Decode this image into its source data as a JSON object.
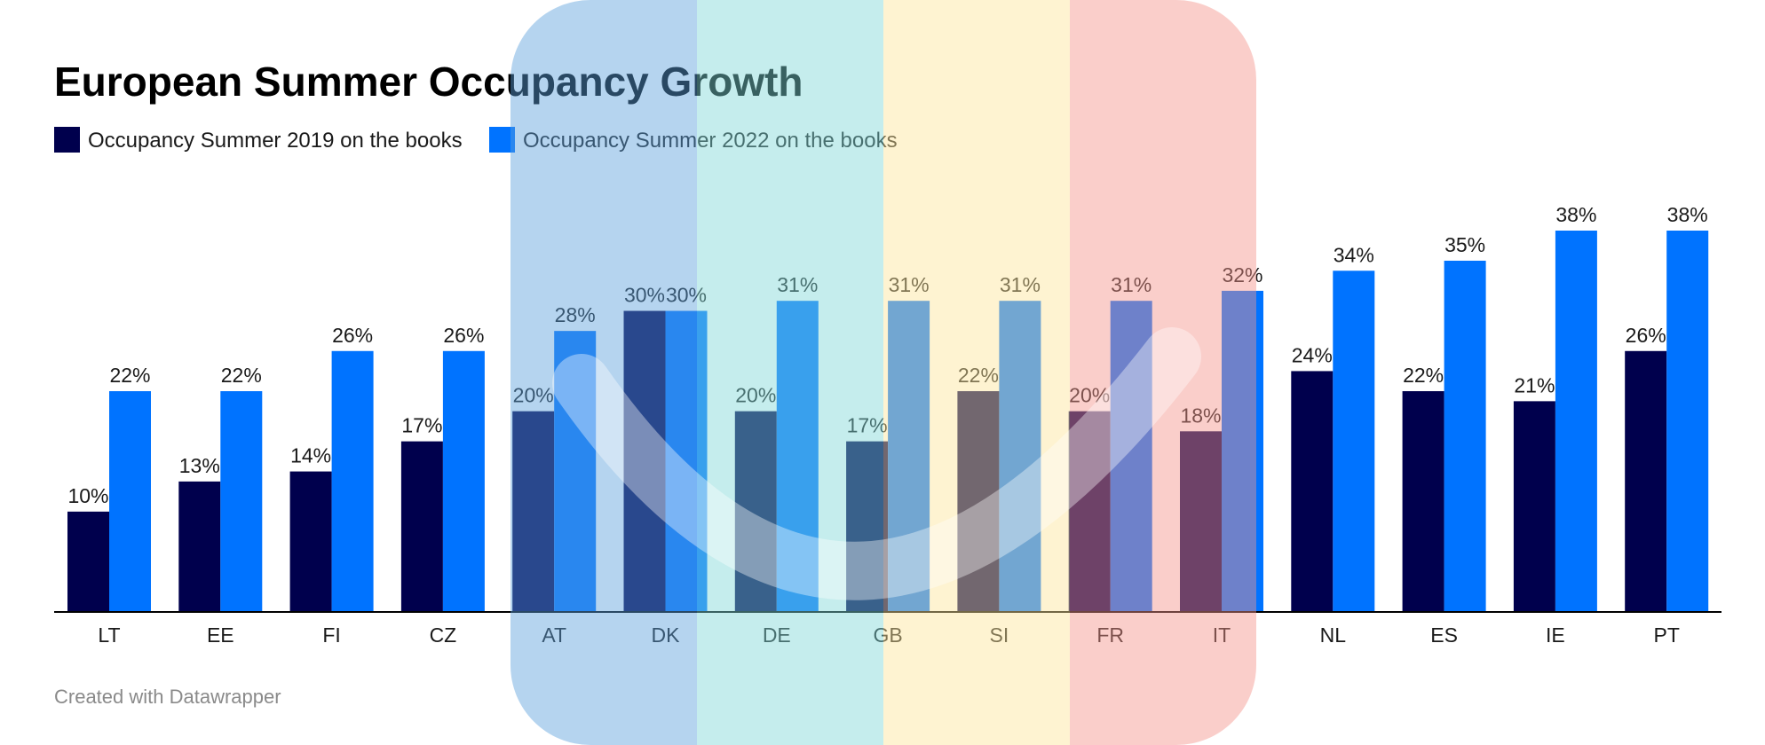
{
  "chart_data": {
    "type": "bar",
    "title": "European Summer Occupancy Growth",
    "categories": [
      "LT",
      "EE",
      "FI",
      "CZ",
      "AT",
      "DK",
      "DE",
      "GB",
      "SI",
      "FR",
      "IT",
      "NL",
      "ES",
      "IE",
      "PT"
    ],
    "series": [
      {
        "name": "Occupancy Summer 2019 on the books",
        "color": "#00004d",
        "values": [
          10,
          13,
          14,
          17,
          20,
          30,
          20,
          17,
          22,
          20,
          18,
          24,
          22,
          21,
          26
        ],
        "labels": [
          "10%",
          "13%",
          "14%",
          "17%",
          "20%",
          "30%",
          "20%",
          "17%",
          "22%",
          "20%",
          "18%",
          "24%",
          "22%",
          "21%",
          "26%"
        ]
      },
      {
        "name": "Occupancy Summer 2022 on the books",
        "color": "#0073ff",
        "values": [
          22,
          22,
          26,
          26,
          28,
          30,
          31,
          31,
          31,
          31,
          32,
          34,
          35,
          38,
          38
        ],
        "labels": [
          "22%",
          "22%",
          "26%",
          "26%",
          "28%",
          "30%",
          "31%",
          "31%",
          "31%",
          "31%",
          "32%",
          "34%",
          "35%",
          "38%",
          "38%"
        ]
      }
    ],
    "xlabel": "",
    "ylabel": "",
    "ylim": [
      0,
      38
    ],
    "grid": false,
    "legend": "top-left",
    "overlay_colors": [
      "#5a9fdc",
      "#7fd6d6",
      "#fde59a",
      "#f4928a"
    ],
    "highlight_color": "#ffffff"
  },
  "footer": {
    "credit": "Created with Datawrapper"
  }
}
